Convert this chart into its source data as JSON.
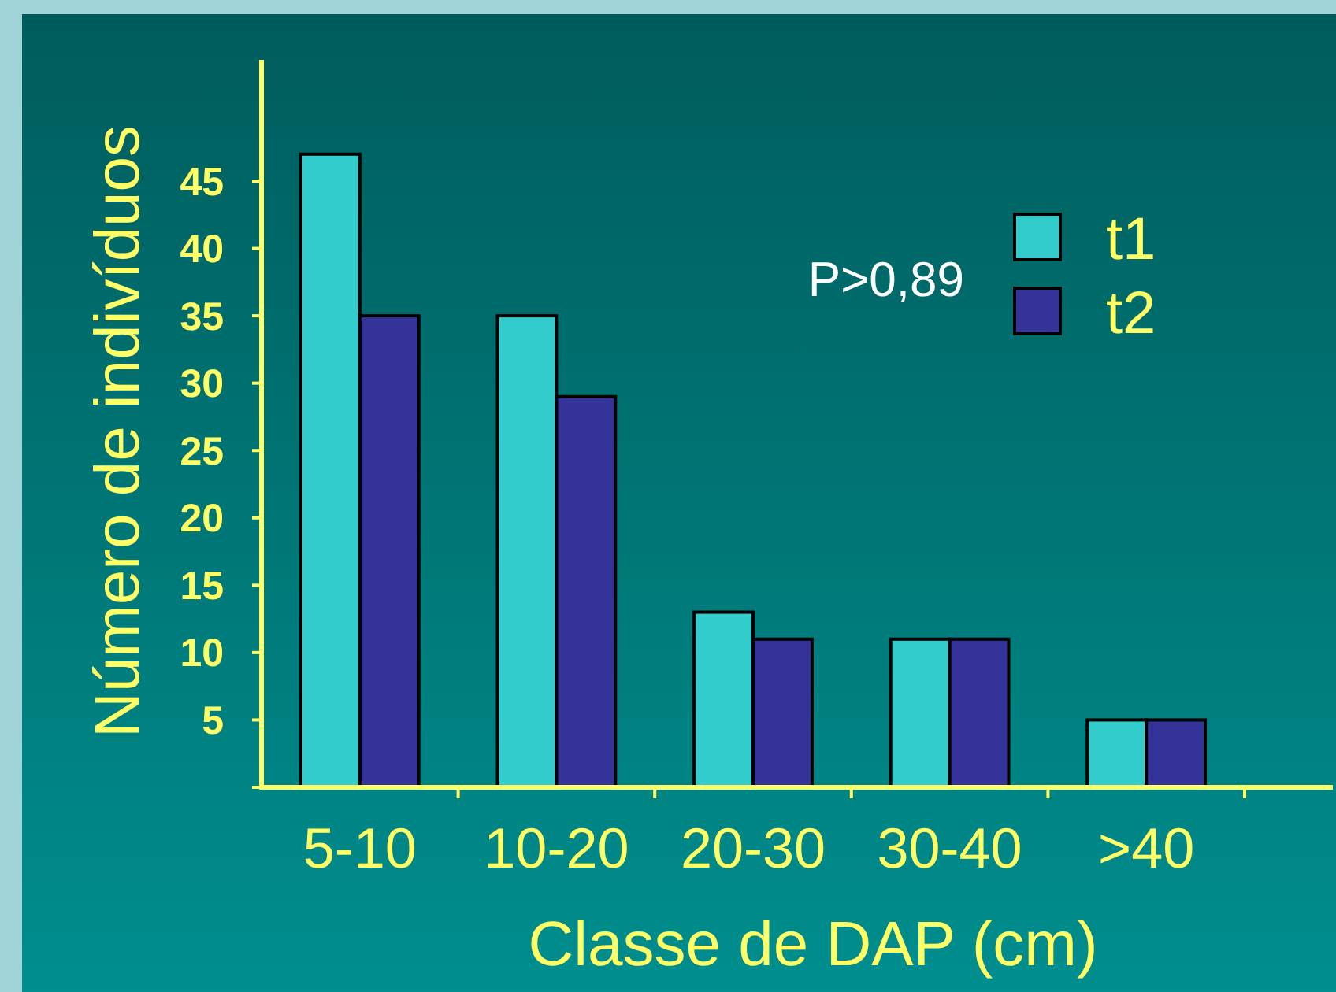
{
  "chart_data": {
    "type": "bar",
    "xlabel": "Classe de DAP (cm)",
    "ylabel": "Número de indivíduos",
    "categories": [
      "5-10",
      "10-20",
      "20-30",
      "30-40",
      ">40"
    ],
    "series": [
      {
        "name": "t1",
        "color": "#33cccc",
        "values": [
          47,
          35,
          13,
          11,
          5
        ]
      },
      {
        "name": "t2",
        "color": "#333399",
        "values": [
          35,
          29,
          11,
          11,
          5
        ]
      }
    ],
    "ylim": [
      0,
      54
    ],
    "yticks": [
      {
        "value": 0,
        "label": null
      },
      5,
      10,
      15,
      20,
      25,
      30,
      35,
      40,
      45
    ],
    "legend": "top right",
    "annotations": [
      "P>0,89"
    ]
  }
}
